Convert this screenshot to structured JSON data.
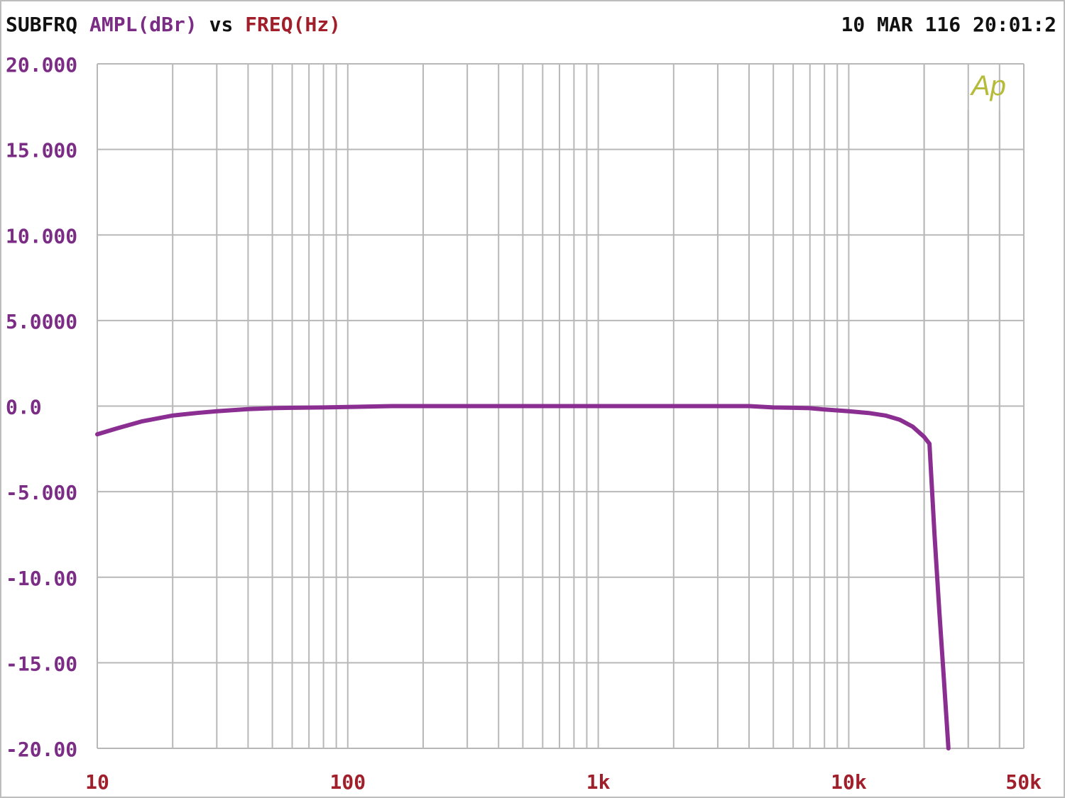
{
  "header": {
    "prefix": "SUBFRQ",
    "y_quantity": "AMPL(dBr)",
    "vs": "vs",
    "x_quantity": "FREQ(Hz)",
    "timestamp": "10 MAR 116 20:01:2"
  },
  "logo": "Ap",
  "colors": {
    "trace": "#8b2e91",
    "y_label": "#7b2d86",
    "x_label": "#a11f2a",
    "text": "#111111",
    "grid": "#b8b8b8",
    "logo": "#b6bb3a"
  },
  "chart_data": {
    "type": "line",
    "x_scale": "log",
    "xlim": [
      10,
      50000
    ],
    "ylim": [
      -20,
      20
    ],
    "grid": true,
    "x_ticks": [
      {
        "value": 10,
        "label": "10"
      },
      {
        "value": 100,
        "label": "100"
      },
      {
        "value": 1000,
        "label": "1k"
      },
      {
        "value": 10000,
        "label": "10k"
      },
      {
        "value": 50000,
        "label": "50k"
      }
    ],
    "y_ticks": [
      {
        "value": 20,
        "label": "20.000"
      },
      {
        "value": 15,
        "label": "15.000"
      },
      {
        "value": 10,
        "label": "10.000"
      },
      {
        "value": 5,
        "label": "5.0000"
      },
      {
        "value": 0,
        "label": "0.0"
      },
      {
        "value": -5,
        "label": "-5.000"
      },
      {
        "value": -10,
        "label": "-10.00"
      },
      {
        "value": -15,
        "label": "-15.00"
      },
      {
        "value": -20,
        "label": "-20.00"
      }
    ],
    "series": [
      {
        "x": [
          10,
          12,
          15,
          20,
          25,
          30,
          40,
          50,
          60,
          80,
          100,
          150,
          200,
          300,
          500,
          700,
          1000,
          2000,
          3000,
          4000,
          5000,
          6000,
          7000,
          8000,
          10000,
          12000,
          14000,
          16000,
          18000,
          20000,
          21000,
          22000,
          23000,
          24000,
          25000
        ],
        "y": [
          -1.65,
          -1.3,
          -0.9,
          -0.55,
          -0.4,
          -0.3,
          -0.18,
          -0.12,
          -0.1,
          -0.08,
          -0.05,
          0.0,
          0.0,
          0.0,
          0.0,
          0.0,
          0.0,
          0.0,
          0.0,
          0.0,
          -0.08,
          -0.1,
          -0.12,
          -0.2,
          -0.3,
          -0.4,
          -0.55,
          -0.8,
          -1.2,
          -1.8,
          -2.2,
          -7.5,
          -12.0,
          -16.0,
          -20.0
        ]
      }
    ]
  }
}
